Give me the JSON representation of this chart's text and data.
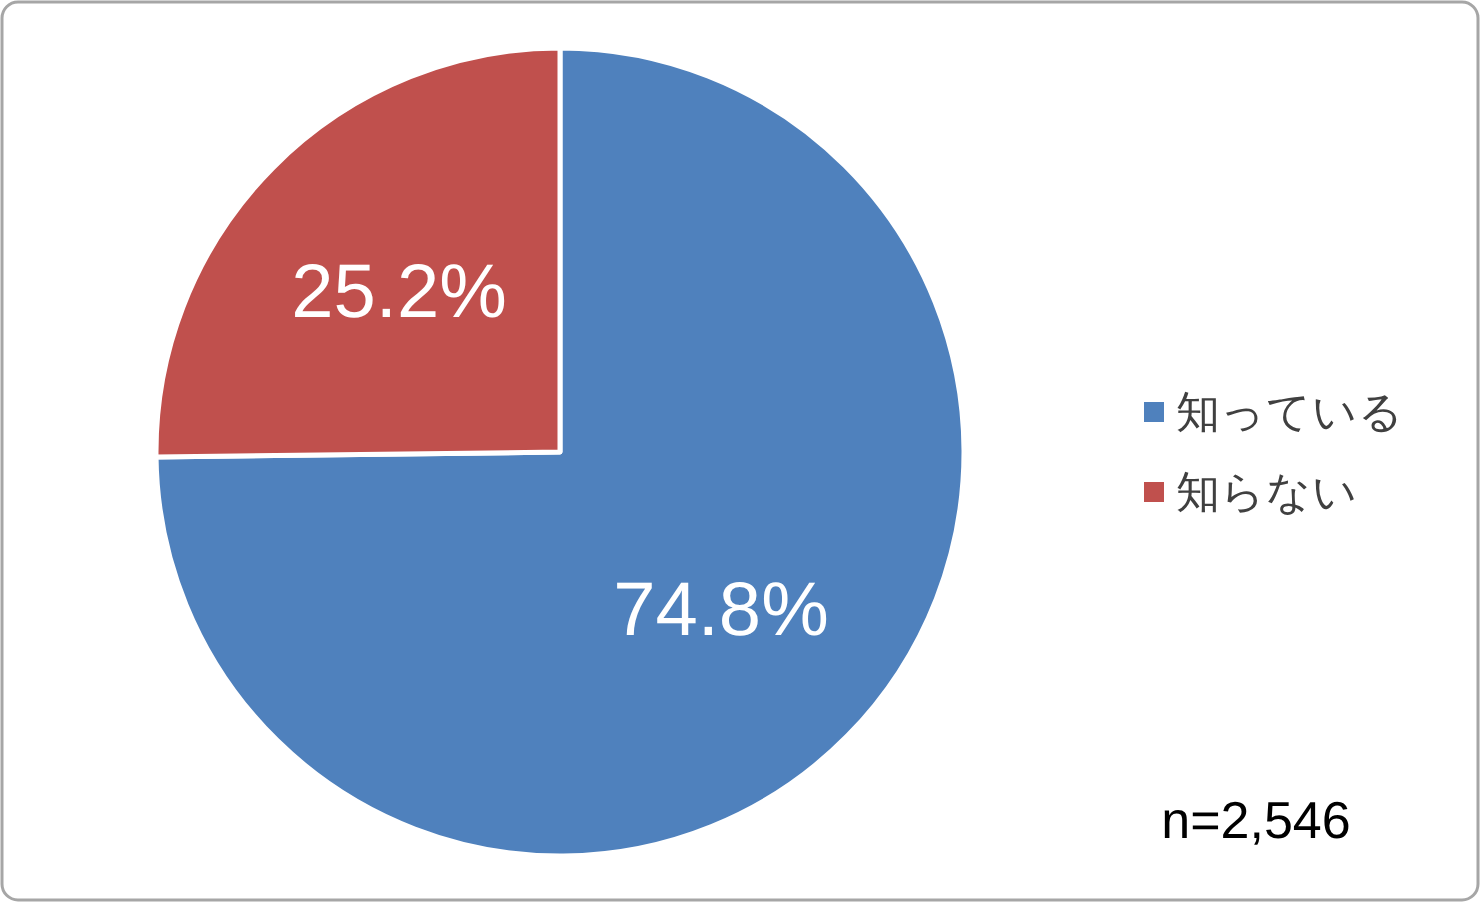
{
  "chart_data": {
    "type": "pie",
    "categories": [
      "知っている",
      "知らない"
    ],
    "values": [
      74.8,
      25.2
    ],
    "colors": [
      "#4f81bd",
      "#c0504d"
    ],
    "value_labels": [
      "74.8%",
      "25.2%"
    ],
    "legend": "right",
    "annotations": [
      "n=2,546"
    ]
  }
}
